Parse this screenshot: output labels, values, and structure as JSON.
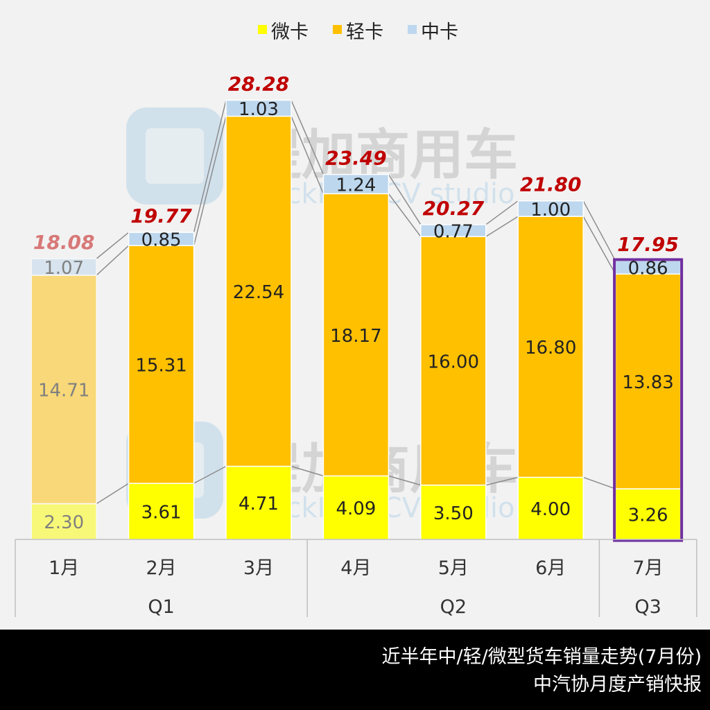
{
  "chart_data": {
    "type": "bar",
    "stacked": true,
    "categories": [
      "1月",
      "2月",
      "3月",
      "4月",
      "5月",
      "6月",
      "7月"
    ],
    "quarters": [
      {
        "label": "Q1",
        "span": 3
      },
      {
        "label": "Q2",
        "span": 3
      },
      {
        "label": "Q3",
        "span": 1
      }
    ],
    "series": [
      {
        "name": "微卡",
        "color": "#ffff00",
        "values": [
          2.3,
          3.61,
          4.71,
          4.09,
          3.5,
          4.0,
          3.26
        ]
      },
      {
        "name": "轻卡",
        "color": "#ffc000",
        "values": [
          14.71,
          15.31,
          22.54,
          18.17,
          16.0,
          16.8,
          13.83
        ]
      },
      {
        "name": "中卡",
        "color": "#bdd7ee",
        "values": [
          1.07,
          0.85,
          1.03,
          1.24,
          0.77,
          1.0,
          0.86
        ]
      }
    ],
    "value_labels": [
      [
        "2.30",
        "3.61",
        "4.71",
        "4.09",
        "3.50",
        "4.00",
        "3.26"
      ],
      [
        "14.71",
        "15.31",
        "22.54",
        "18.17",
        "16.00",
        "16.80",
        "13.83"
      ],
      [
        "1.07",
        "0.85",
        "1.03",
        "1.24",
        "0.77",
        "1.00",
        "0.86"
      ]
    ],
    "totals": [
      18.08,
      19.77,
      28.28,
      23.49,
      20.27,
      21.8,
      17.95
    ],
    "total_labels": [
      "18.08",
      "19.77",
      "28.28",
      "23.49",
      "20.27",
      "21.80",
      "17.95"
    ],
    "total_label_color": "#c00000",
    "faded_category_index": 0,
    "highlighted_category_index": 6,
    "highlight_color": "#7030a0",
    "connector_lines": true,
    "legend_position": "top",
    "ylim": [
      0,
      30
    ],
    "grid": false
  },
  "watermark": {
    "cn": "提加商用车",
    "en": "TruckPlus CV studio",
    "color": "#5fa8d8"
  },
  "footer": {
    "line1": "近半年中/轻/微型货车销量走势(7月份)",
    "line2": "中汽协月度产销快报"
  }
}
